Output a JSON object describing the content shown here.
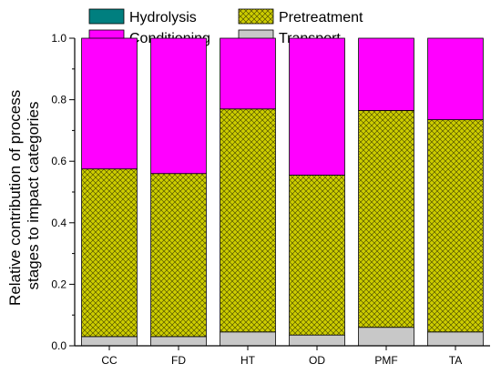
{
  "chart_data": {
    "type": "bar",
    "stacked": true,
    "categories": [
      "CC",
      "FD",
      "HT",
      "OD",
      "PMF",
      "TA"
    ],
    "ylabel": "Relative contribution of process stages to impact categories",
    "ylabel_lines": [
      "Relative contribution of process",
      "stages to impact categories"
    ],
    "xlabel": "",
    "ylim": [
      0,
      1.0
    ],
    "yticks": [
      0.0,
      0.2,
      0.4,
      0.6,
      0.8,
      1.0
    ],
    "ytick_labels": [
      "0.0",
      "0.2",
      "0.4",
      "0.6",
      "0.8",
      "1.0"
    ],
    "grid": false,
    "legend_position": "top",
    "series": [
      {
        "name": "Transport",
        "color": "#c8c8c8",
        "pattern": "none",
        "values": [
          0.03,
          0.03,
          0.045,
          0.035,
          0.06,
          0.045
        ]
      },
      {
        "name": "Pretreatment",
        "color": "#cccc00",
        "pattern": "crosshatch",
        "values": [
          0.545,
          0.53,
          0.725,
          0.52,
          0.705,
          0.69
        ]
      },
      {
        "name": "Hydrolysis",
        "color": "#007f7f",
        "pattern": "none",
        "values": [
          0.0,
          0.0,
          0.0,
          0.0,
          0.0,
          0.0
        ]
      },
      {
        "name": "Conditioning",
        "color": "#ff00ff",
        "pattern": "none",
        "values": [
          0.425,
          0.44,
          0.23,
          0.445,
          0.235,
          0.265
        ]
      }
    ],
    "legend": [
      {
        "name": "Hydrolysis",
        "color": "#007f7f",
        "pattern": "none"
      },
      {
        "name": "Pretreatment",
        "color": "#cccc00",
        "pattern": "crosshatch"
      },
      {
        "name": "Conditioning",
        "color": "#ff00ff",
        "pattern": "none"
      },
      {
        "name": "Transport",
        "color": "#c8c8c8",
        "pattern": "none"
      }
    ]
  }
}
